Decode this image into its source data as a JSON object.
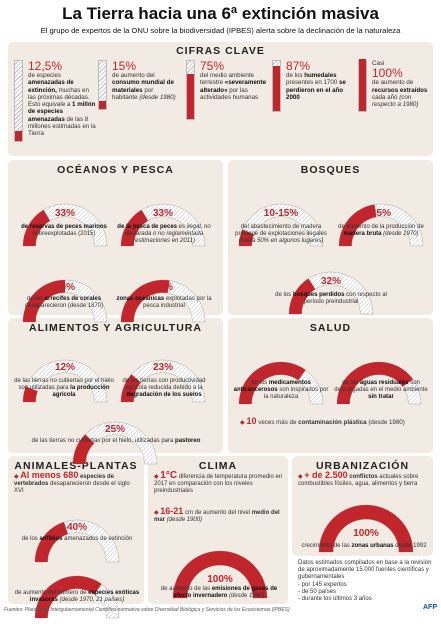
{
  "title": "La Tierra hacia una 6ª extinción masiva",
  "subtitle": "El grupo de expertos de la ONU sobre la biodiversidad (IPBES) alerta sobre la declinación de la naturaleza",
  "colors": {
    "red": "#c0262c",
    "panel": "#f1ebe3",
    "hatch": "#bbbbbb"
  },
  "cifras": {
    "title": "CIFRAS CLAVE",
    "items": [
      {
        "value": "12,5%",
        "text": "de especies",
        "bold": "amenazadas de extinción,",
        "rest": "muchas en las próximas décadas. Esto equivale a",
        "bold2": "1 millón de especies amenazadas",
        "rest2": "de las 8 millones estimadas en la Tierra",
        "fill": 0.125
      },
      {
        "value": "15%",
        "text": "de aumento del",
        "bold": "consumo mundial de materiales",
        "rest": "por habitante",
        "italic": "(desde 1980)",
        "fill": 0.15
      },
      {
        "value": "75%",
        "text": "del medio ambiente terrestre",
        "bold": "«severamente alterado»",
        "rest": "por las actividades humanas",
        "fill": 0.75
      },
      {
        "value": "87%",
        "text": "de los",
        "bold": "humedales",
        "rest": "presentes en 1700",
        "bold2": "se perdieron en el año 2000",
        "fill": 0.87
      },
      {
        "pre": "Casi",
        "value": "100%",
        "text": "de aumento de",
        "bold": "recursos extraídos",
        "rest": "cada año",
        "italic": "(con respecto a 1980)",
        "fill": 1.0
      }
    ]
  },
  "oceanos": {
    "title": "OCÉANOS Y PESCA",
    "items": [
      {
        "value": "33%",
        "fill": 0.33,
        "bold": "de reservas de peces marinos",
        "rest": "sobreexplotadas (2015)"
      },
      {
        "value": "33%",
        "fill": 0.33,
        "bold": "de la pesca de peces",
        "rest": "es ilegal, no declarada o no reglamentada (estimaciones en 2011)"
      },
      {
        "value": "50%",
        "fill": 0.5,
        "pre": "de los",
        "bold": "arrecifes de corales",
        "rest": "desaparecieron (desde 1870)"
      },
      {
        "value": "55%",
        "fill": 0.55,
        "bold": "zonas oceánicas",
        "rest": "explotadas por la pesca industrial"
      }
    ]
  },
  "bosques": {
    "title": "BOSQUES",
    "items": [
      {
        "value": "10-15%",
        "fill": 0.13,
        "pre": "del abastecimiento de madera proviene de explotaciones ilegales",
        "rest": "(hasta 50% en algunos lugares)"
      },
      {
        "value": "45%",
        "fill": 0.45,
        "pre": "de aumento de la producción de",
        "bold": "madera bruta",
        "rest": "(desde 1970)"
      },
      {
        "value": "32%",
        "fill": 0.32,
        "pre": "de los",
        "bold": "bosques perdidos",
        "rest": "con respecto al período preindustrial"
      }
    ]
  },
  "alimentos": {
    "title": "ALIMENTOS Y AGRICULTURA",
    "items": [
      {
        "value": "12%",
        "fill": 0.12,
        "pre": "de las tierras no cubiertas por el hielo son utilizadas para",
        "bold": "la producción agrícola"
      },
      {
        "value": "23%",
        "fill": 0.23,
        "pre": "de las tierras con productividad agrícola reducida debido a la",
        "bold": "degradación de los suelos"
      },
      {
        "value": "25%",
        "fill": 0.25,
        "pre": "de las tierras no cubiertas por el hielo, utilizadas para",
        "bold": "pastoreo"
      }
    ]
  },
  "salud": {
    "title": "SALUD",
    "items": [
      {
        "value": "70%",
        "fill": 0.7,
        "pre": "de los",
        "bold": "medicamentos anticancerosos",
        "rest": "son inspirados por la naturaleza"
      },
      {
        "value": "80%",
        "fill": 0.8,
        "pre": "de las",
        "bold": "aguas residuales",
        "rest": "son descargadas en el medio ambiente",
        "bold2": "sin tratar"
      }
    ],
    "extra": {
      "value": "10",
      "text": "veces más de",
      "bold": "contaminación plástica",
      "rest": "(desde 1980)"
    }
  },
  "animales": {
    "title": "ANIMALES-PLANTAS",
    "intro": {
      "value": "Al menos 680",
      "bold": "especies de vertebrados",
      "rest": "desaparecieron desde el siglo XVI"
    },
    "items": [
      {
        "value": "40%",
        "fill": 0.4,
        "pre": "de los",
        "bold": "anfibios",
        "rest": "amenazados de extinción"
      },
      {
        "value": "70%",
        "fill": 0.7,
        "pre": "de aumento del número de",
        "bold": "especies exóticas invasoras",
        "rest": "(desde 1970, 21 países)"
      }
    ]
  },
  "clima": {
    "title": "CLIMA",
    "items": [
      {
        "value": "1°C",
        "text": "diferencia de temperatura promedio en 2017 en comparación con los niveles preindustriales"
      },
      {
        "value": "16-21",
        "text": "cm de aumento del nivel",
        "bold": "medio del mar",
        "rest": "(desde 1900)"
      }
    ],
    "arc": {
      "value": "100%",
      "fill": 1.0,
      "pre": "de aumento de las",
      "bold": "emisiones de gases de efecto invernadero",
      "rest": "(desde 1980)"
    }
  },
  "urbanizacion": {
    "title": "URBANIZACIÓN",
    "intro": {
      "value": "+ de 2.500",
      "bold": "conflictos",
      "rest": "actuales sobre combustibles fósiles, agua, alimentos y tierra"
    },
    "arc": {
      "value": "100%",
      "fill": 1.0,
      "pre": "crecimiento de las",
      "bold": "zonas urbanas",
      "rest": "desde 1992"
    }
  },
  "datos": {
    "lines": [
      "Datos estimados compilados en base a la revisión de aproximadamente 15.000 fuentes científicas y gubernamentales",
      "- por 145 expertos",
      "- de 50 países",
      "- durante los últimos 3 años"
    ]
  },
  "footer": "Fuentes: Plataforma Intergubernamental Científico-normativa sobre Diversidad Biológica y Servicios de los Ecosistemas (IPBES)",
  "afp": "AFP"
}
